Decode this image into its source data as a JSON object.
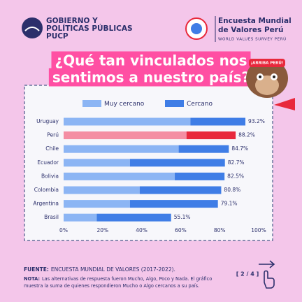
{
  "header": {
    "org_lines": [
      "GOBIERNO Y",
      "POLÍTICAS PÚBLICAS",
      "PUCP"
    ],
    "survey_lines": [
      "Encuesta Mundial",
      "de Valores Perú"
    ],
    "survey_sub": "WORLD VALUES SURVEY PERÚ"
  },
  "title_lines": [
    "¿Qué tan vinculados nos",
    "sentimos a nuestro país?"
  ],
  "mascot_hat": "¡ARRIBA PERÚ!",
  "chart_data": {
    "type": "stacked_bar_horizontal",
    "categories": [
      "Uruguay",
      "Perú",
      "Chile",
      "Ecuador",
      "Bolivia",
      "Colombia",
      "Argentina",
      "Brasil"
    ],
    "series": [
      {
        "name": "Muy cercano",
        "color": "#8cb5f4",
        "highlight_color": "#f48ea3",
        "values": [
          65,
          63,
          59,
          34,
          57,
          39,
          34,
          17
        ]
      },
      {
        "name": "Cercano",
        "color": "#3f7de6",
        "highlight_color": "#e8283c",
        "values": [
          28.2,
          25.2,
          25.7,
          48.7,
          25.5,
          41.8,
          45.1,
          38.1
        ]
      }
    ],
    "highlight_index": 1,
    "totals": [
      93.2,
      88.2,
      84.7,
      82.7,
      82.5,
      80.8,
      79.1,
      55.1
    ],
    "total_labels": [
      "93.2%",
      "88.2%",
      "84.7%",
      "82.7%",
      "82.5%",
      "80.8%",
      "79.1%",
      "55.1%"
    ],
    "xlim": [
      0,
      100
    ],
    "xticks": [
      {
        "value": 0,
        "label": "0%"
      },
      {
        "value": 20,
        "label": "20%"
      },
      {
        "value": 40,
        "label": "40%"
      },
      {
        "value": 60,
        "label": "60%"
      },
      {
        "value": 80,
        "label": "80%"
      },
      {
        "value": 100,
        "label": "100%"
      }
    ]
  },
  "footer": {
    "source_label": "FUENTE:",
    "source": "ENCUESTA MUNDIAL DE VALORES (2017-2022).",
    "note_label": "NOTA:",
    "note_lines": [
      "Las alternativas de respuesta fueron Mucho, Algo, Poco y Nada. El gráfico",
      "muestra la suma de quienes respondieron Mucho o Algo cercanos a su país."
    ],
    "page": "[ 2 / 4 ]"
  }
}
